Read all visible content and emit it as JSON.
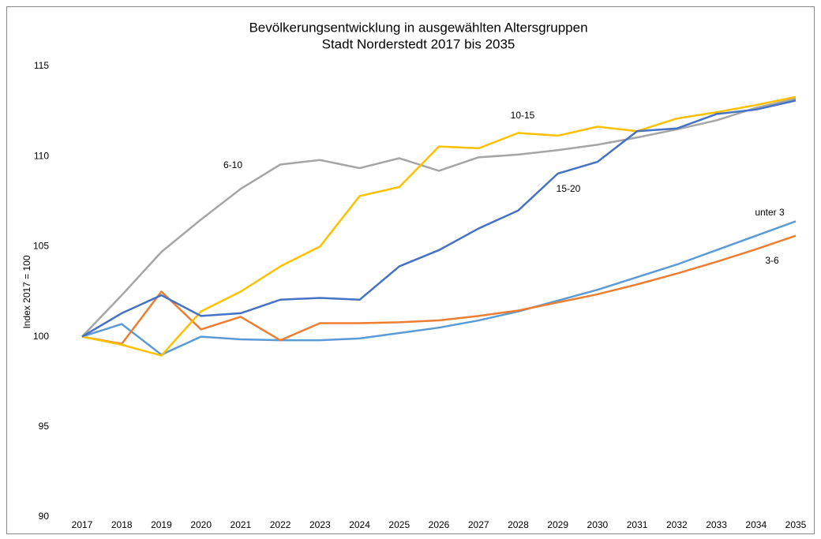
{
  "chart_data": {
    "type": "line",
    "title": [
      "Bevölkerungsentwicklung in ausgewählten Altersgruppen",
      "Stadt Norderstedt 2017 bis 2035"
    ],
    "y_label": "Index 2017 = 100",
    "categories": [
      "2017",
      "2018",
      "2019",
      "2020",
      "2021",
      "2022",
      "2023",
      "2024",
      "2025",
      "2026",
      "2027",
      "2028",
      "2029",
      "2030",
      "2031",
      "2032",
      "2033",
      "2034",
      "2035"
    ],
    "series": [
      {
        "name": "unter 3",
        "color": "#5b9bd5",
        "values": [
          100,
          100.7,
          99.0,
          100.0,
          99.85,
          99.8,
          99.8,
          99.9,
          100.2,
          100.5,
          100.9,
          101.4,
          102.0,
          102.6,
          103.3,
          104.0,
          104.8,
          105.6,
          106.4
        ]
      },
      {
        "name": "3-6",
        "color": "#ed7d31",
        "values": [
          100,
          99.6,
          102.5,
          100.4,
          101.1,
          99.8,
          100.75,
          100.75,
          100.8,
          100.9,
          101.15,
          101.45,
          101.9,
          102.35,
          102.9,
          103.5,
          104.15,
          104.85,
          105.6
        ]
      },
      {
        "name": "6-10",
        "color": "#a5a5a5",
        "values": [
          100,
          102.3,
          104.7,
          106.5,
          108.2,
          109.55,
          109.8,
          109.35,
          109.9,
          109.2,
          109.95,
          110.1,
          110.35,
          110.65,
          111.05,
          111.5,
          112.0,
          112.7,
          113.2
        ]
      },
      {
        "name": "10-15",
        "color": "#ffc000",
        "values": [
          100,
          99.55,
          98.95,
          101.4,
          102.5,
          103.9,
          105.0,
          107.8,
          108.3,
          110.55,
          110.45,
          111.3,
          111.15,
          111.65,
          111.4,
          112.1,
          112.45,
          112.85,
          113.3
        ]
      },
      {
        "name": "15-20",
        "color": "#4472c4",
        "values": [
          100,
          101.3,
          102.3,
          101.15,
          101.3,
          102.05,
          102.15,
          102.05,
          103.9,
          104.8,
          106.0,
          107.0,
          109.05,
          109.7,
          111.4,
          111.55,
          112.35,
          112.6,
          113.1
        ]
      }
    ],
    "ylim": [
      90,
      115
    ],
    "yticks": [
      90,
      95,
      100,
      105,
      110,
      115
    ],
    "grid": false
  }
}
